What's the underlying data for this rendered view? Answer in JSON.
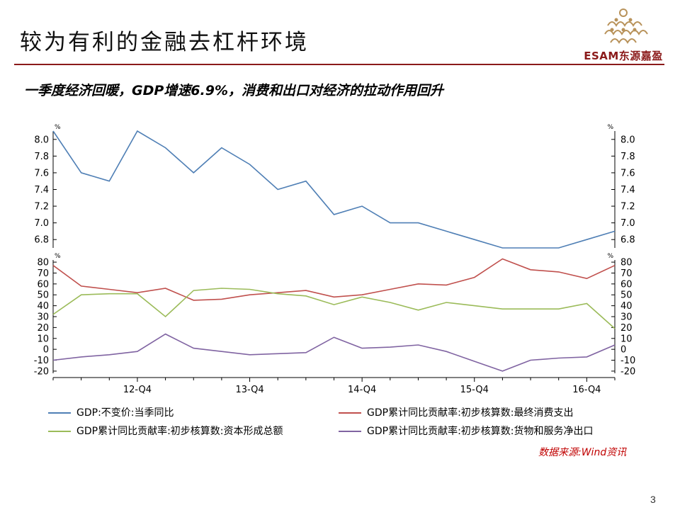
{
  "slide": {
    "title": "较为有利的金融去杠杆环境",
    "subtitle": "一季度经济回暖，GDP增速6.9%，消费和出口对经济的拉动作用回升",
    "logo_text": "ESAM东源嘉盈",
    "source": "数据来源:Wind资讯",
    "page_number": "3"
  },
  "colors": {
    "gdp": "#4f7fb5",
    "consumption": "#c0504d",
    "capital": "#9bbb59",
    "net_exports": "#8064a2",
    "brand": "#8b1a1a",
    "logo_gold": "#b8925a"
  },
  "chart_data": [
    {
      "type": "line",
      "panel": "top",
      "unit": "%",
      "ylim": [
        6.7,
        8.1
      ],
      "yticks": [
        "8.0",
        "7.8",
        "7.6",
        "7.4",
        "7.2",
        "7.0",
        "6.8"
      ],
      "ytick_values": [
        8.0,
        7.8,
        7.6,
        7.4,
        7.2,
        7.0,
        6.8
      ],
      "dual_axis": true,
      "grid": false,
      "series": [
        {
          "name": "GDP:不变价:当季同比",
          "color_key": "gdp",
          "values": [
            8.1,
            7.6,
            7.5,
            8.1,
            7.9,
            7.6,
            7.9,
            7.7,
            7.4,
            7.5,
            7.1,
            7.2,
            7.0,
            7.0,
            6.9,
            6.8,
            6.7,
            6.7,
            6.7,
            6.8,
            6.9
          ]
        }
      ]
    },
    {
      "type": "line",
      "panel": "bottom",
      "unit": "%",
      "ylim": [
        -22,
        82
      ],
      "yticks": [
        "80",
        "70",
        "60",
        "50",
        "40",
        "30",
        "20",
        "10",
        "0",
        "-10",
        "-20"
      ],
      "ytick_values": [
        80,
        70,
        60,
        50,
        40,
        30,
        20,
        10,
        0,
        -10,
        -20
      ],
      "dual_axis": true,
      "grid": false,
      "x_tick_labels": [
        "12-Q4",
        "13-Q4",
        "14-Q4",
        "15-Q4",
        "16-Q4"
      ],
      "x_tick_indices": [
        3,
        7,
        11,
        15,
        19
      ],
      "series": [
        {
          "name": "GDP累计同比贡献率:初步核算数:最终消费支出",
          "color_key": "consumption",
          "values": [
            77,
            58,
            55,
            52,
            56,
            45,
            46,
            50,
            52,
            54,
            48,
            50,
            55,
            60,
            59,
            66,
            83,
            73,
            71,
            65,
            77
          ]
        },
        {
          "name": "GDP累计同比贡献率:初步核算数:资本形成总额",
          "color_key": "capital",
          "values": [
            32,
            50,
            51,
            51,
            30,
            54,
            56,
            55,
            51,
            49,
            41,
            48,
            43,
            36,
            43,
            40,
            37,
            37,
            37,
            42,
            19
          ]
        },
        {
          "name": "GDP累计同比贡献率:初步核算数:货物和服务净出口",
          "color_key": "net_exports",
          "values": [
            -10,
            -7,
            -5,
            -2,
            14,
            1,
            -2,
            -5,
            -4,
            -3,
            11,
            1,
            2,
            4,
            -2,
            -11,
            -20,
            -10,
            -8,
            -7,
            4
          ]
        }
      ]
    }
  ]
}
